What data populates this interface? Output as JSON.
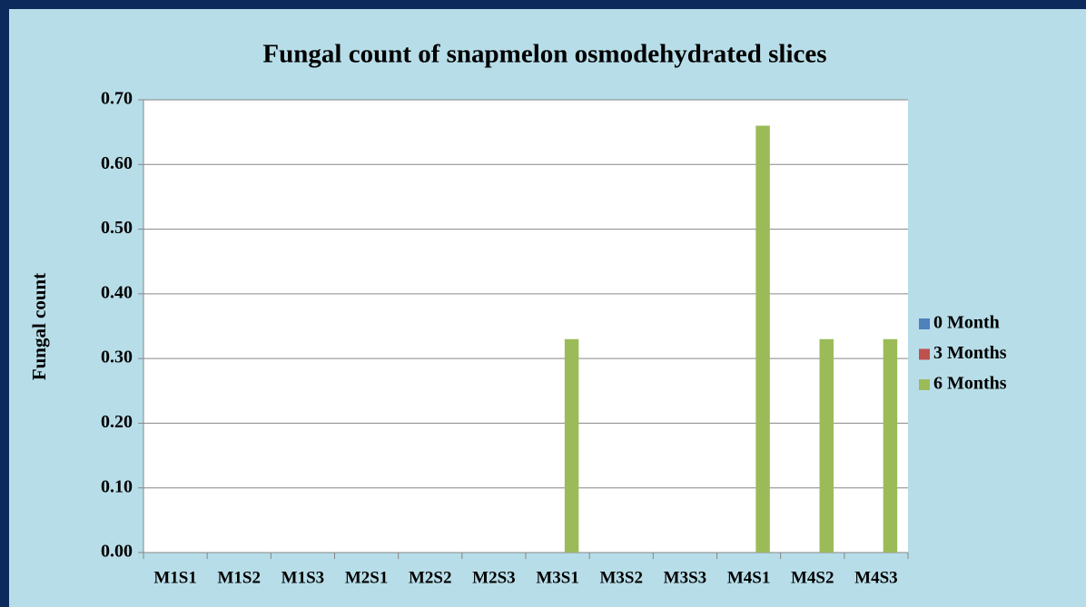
{
  "chart_data": {
    "type": "bar",
    "title": "Fungal count of snapmelon osmodehydrated slices",
    "y_label": "Fungal count",
    "categories": [
      "M1S1",
      "M1S2",
      "M1S3",
      "M2S1",
      "M2S2",
      "M2S3",
      "M3S1",
      "M3S2",
      "M3S3",
      "M4S1",
      "M4S2",
      "M4S3"
    ],
    "series": [
      {
        "name": "0 Month",
        "color": "#4f81bd",
        "values": [
          0,
          0,
          0,
          0,
          0,
          0,
          0,
          0,
          0,
          0,
          0,
          0
        ]
      },
      {
        "name": "3 Months",
        "color": "#c0504d",
        "values": [
          0,
          0,
          0,
          0,
          0,
          0,
          0,
          0,
          0,
          0,
          0,
          0
        ]
      },
      {
        "name": "6 Months",
        "color": "#9bbb59",
        "values": [
          0,
          0,
          0,
          0,
          0,
          0,
          0.33,
          0,
          0,
          0.66,
          0.33,
          0.33
        ]
      }
    ],
    "ylim": [
      0,
      0.7
    ],
    "yticks": [
      {
        "value": 0,
        "label": "0.00"
      },
      {
        "value": 0.1,
        "label": "0.10"
      },
      {
        "value": 0.2,
        "label": "0.20"
      },
      {
        "value": 0.3,
        "label": "0.30"
      },
      {
        "value": 0.4,
        "label": "0.40"
      },
      {
        "value": 0.5,
        "label": "0.50"
      },
      {
        "value": 0.6,
        "label": "0.60"
      },
      {
        "value": 0.7,
        "label": "0.70"
      }
    ],
    "grid": true,
    "legend": "right"
  }
}
